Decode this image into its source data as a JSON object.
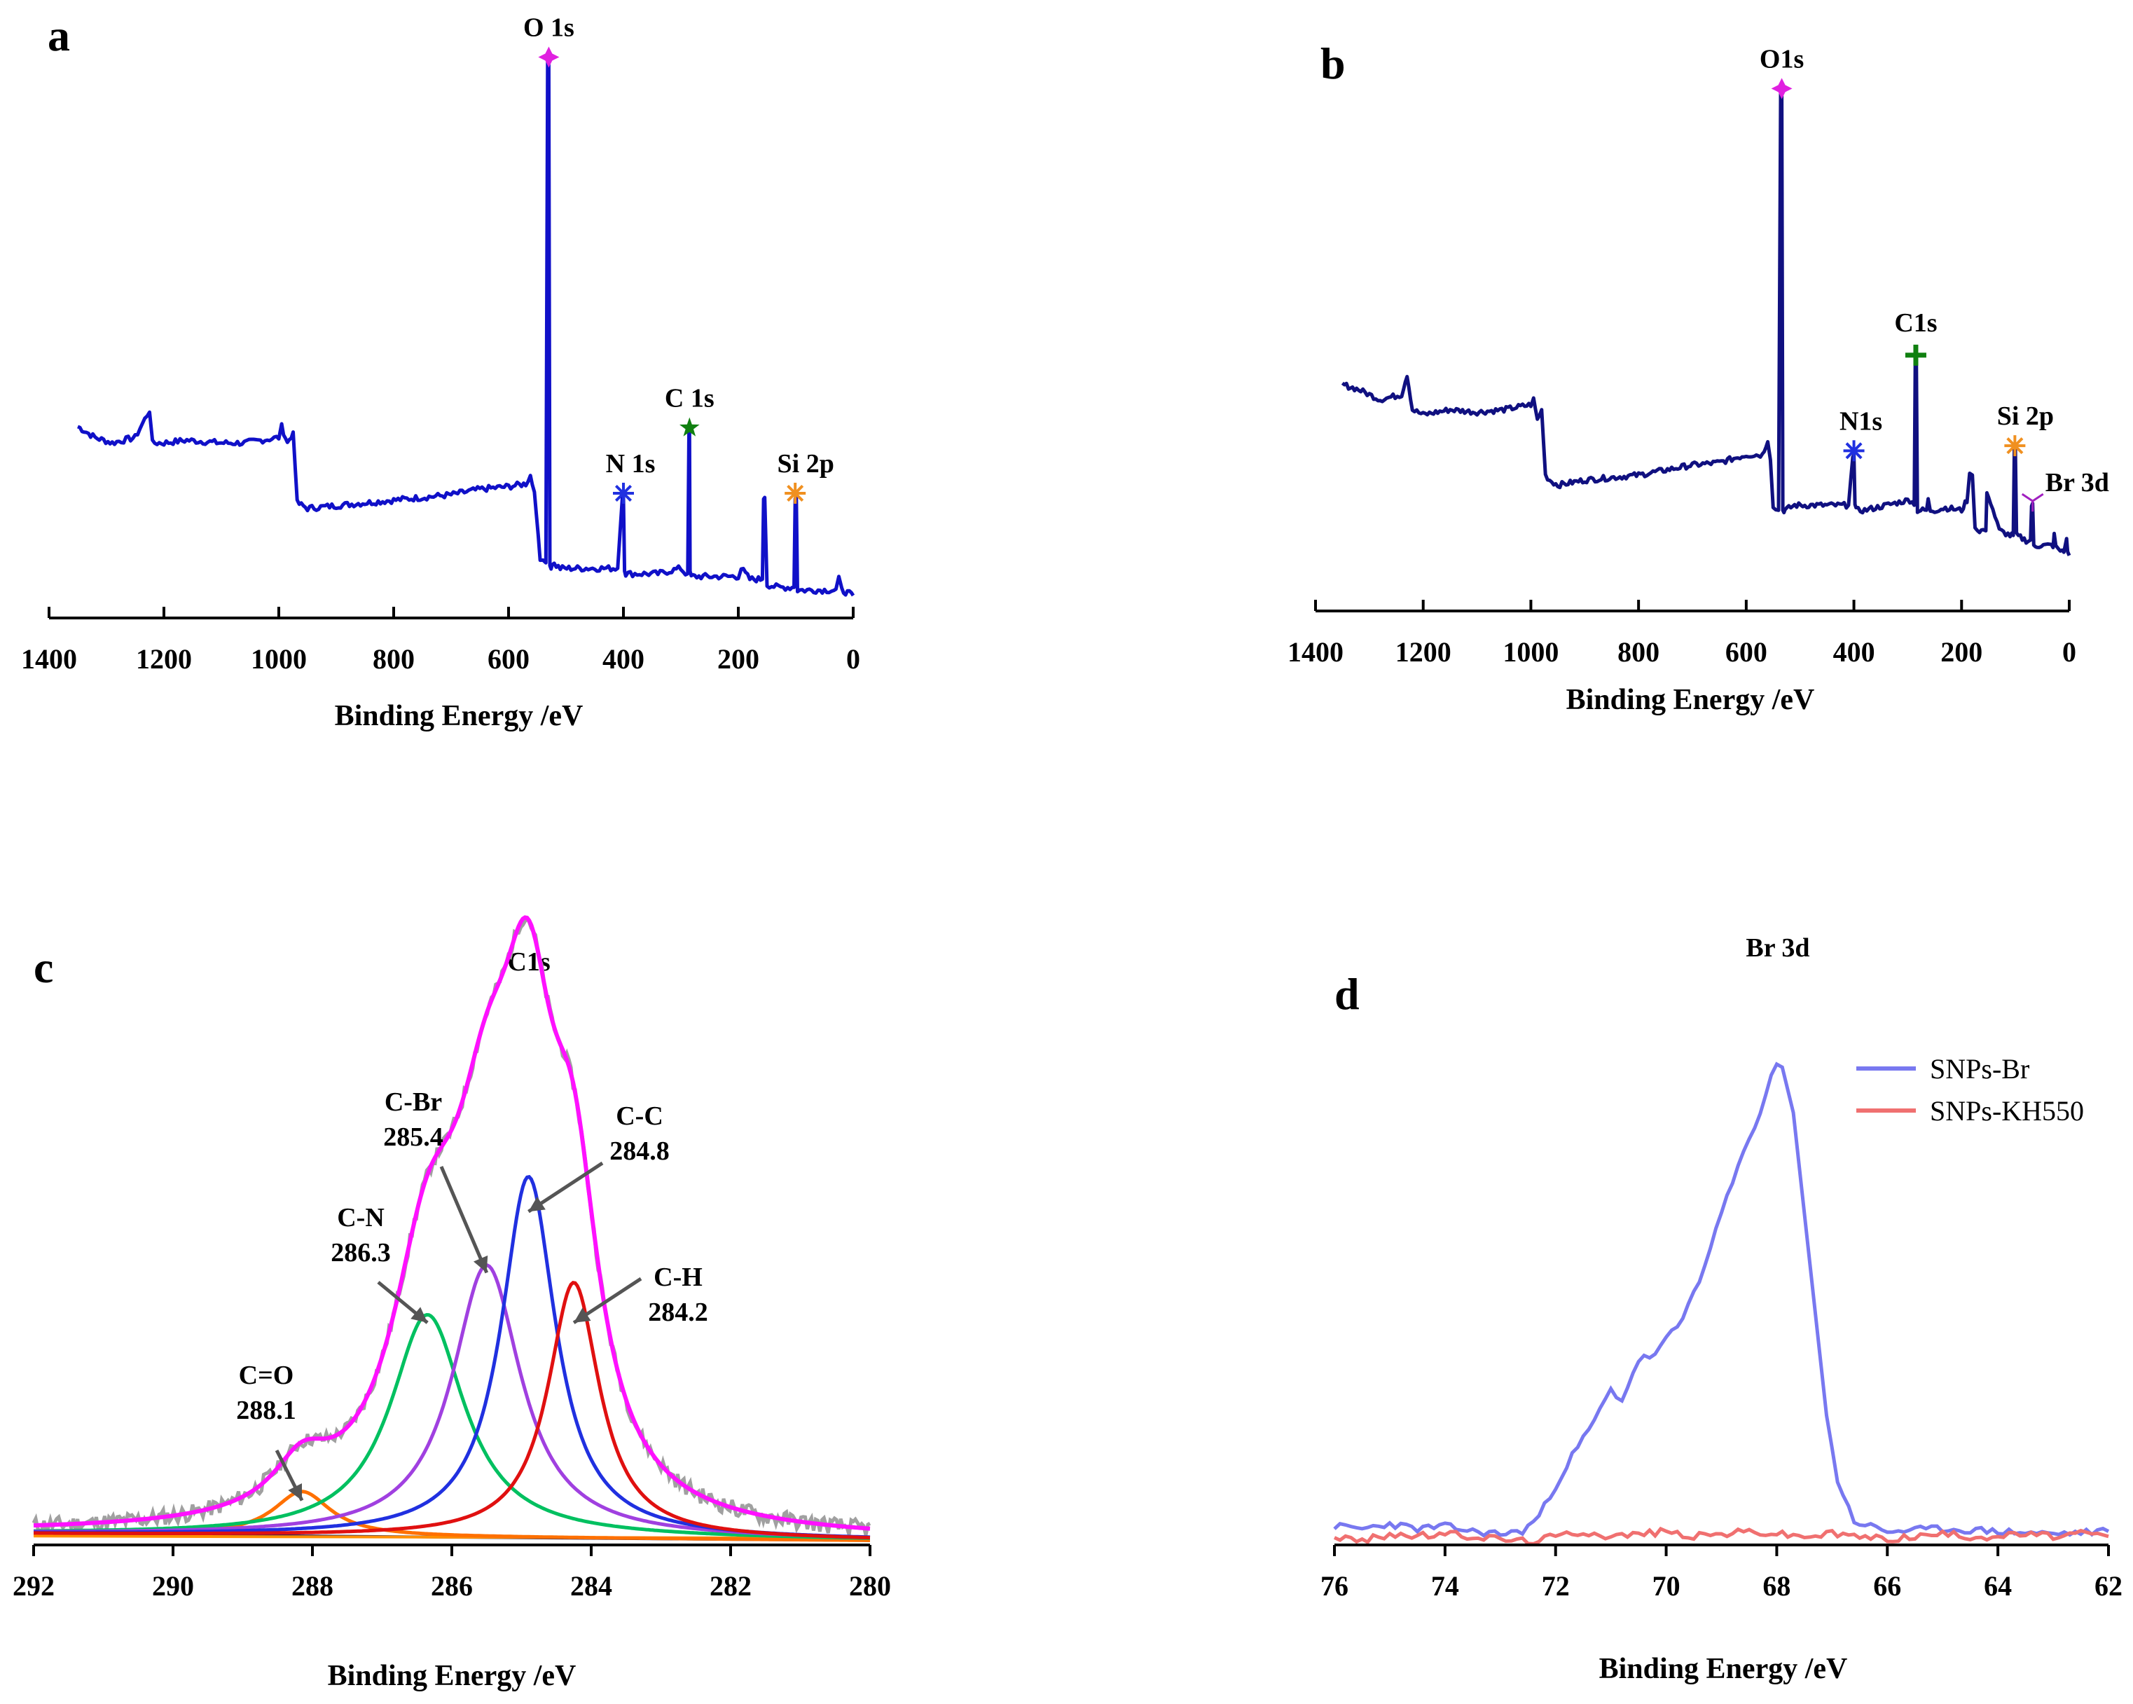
{
  "figure": {
    "panels": [
      {
        "letter": "a",
        "xlabel": "Binding Energy /eV"
      },
      {
        "letter": "b",
        "xlabel": "Binding Energy /eV"
      },
      {
        "letter": "c",
        "xlabel": "Binding Energy /eV",
        "peak_title": "C1s"
      },
      {
        "letter": "d",
        "xlabel": "Binding Energy /eV",
        "peak_title": "Br 3d"
      }
    ]
  },
  "chart_data": [
    {
      "type": "line",
      "panel": "a",
      "xlabel": "Binding Energy /eV",
      "ylabel": "",
      "xlim": [
        1400,
        0
      ],
      "x_reversed": true,
      "xticks": [
        1400,
        1200,
        1000,
        800,
        600,
        400,
        200,
        0
      ],
      "ylim": [
        0,
        100
      ],
      "y_axis_visible": false,
      "colors": {
        "line": "#1010c8"
      },
      "series": [
        {
          "x": [
            1350,
            1320,
            1290,
            1250,
            1225,
            1220,
            1200,
            1160,
            1100,
            1060,
            1000,
            995,
            985,
            975,
            968,
            950,
            900,
            850,
            800,
            750,
            700,
            650,
            600,
            570,
            562,
            555,
            545,
            540,
            535,
            532,
            530,
            528,
            526,
            524,
            510,
            480,
            450,
            410,
            402,
            400,
            398,
            396,
            380,
            340,
            300,
            292,
            288,
            286,
            285,
            284,
            282,
            276,
            250,
            210,
            200,
            195,
            180,
            165,
            158,
            156,
            154,
            150,
            130,
            110,
            103,
            101,
            99,
            97,
            80,
            50,
            30,
            25,
            20,
            10,
            0
          ],
          "y": [
            31,
            29,
            28,
            29,
            34,
            28,
            28,
            28.5,
            28,
            28,
            29,
            31,
            28,
            30,
            17,
            16,
            16.5,
            17,
            17.5,
            18,
            18.5,
            19.5,
            20,
            20.5,
            22,
            19,
            7,
            6,
            6,
            98,
            98,
            6,
            5,
            6,
            5,
            5,
            5,
            5,
            18,
            18,
            5,
            4,
            4,
            4,
            5,
            4,
            4,
            30,
            30,
            4,
            3.5,
            3.5,
            3.5,
            3.5,
            3.5,
            5,
            3,
            3,
            3,
            18,
            18,
            2,
            1.5,
            1.5,
            1.5,
            18,
            18,
            1,
            1,
            1,
            1,
            3,
            1,
            0.5,
            0
          ]
        }
      ],
      "annotations": [
        {
          "text": "O 1s",
          "x": 530,
          "y": 98,
          "marker": "star4",
          "color": "#e020e0"
        },
        {
          "text": "N 1s",
          "x": 400,
          "y": 18,
          "marker": "asterisk",
          "color": "#2030e0"
        },
        {
          "text": "C 1s",
          "x": 285,
          "y": 30,
          "marker": "star5",
          "color": "#108010"
        },
        {
          "text": "Si 2p",
          "x": 101,
          "y": 18,
          "marker": "asterisk",
          "color": "#f09020"
        }
      ]
    },
    {
      "type": "line",
      "panel": "b",
      "xlabel": "Binding Energy /eV",
      "ylabel": "",
      "xlim": [
        1400,
        0
      ],
      "x_reversed": true,
      "xticks": [
        1400,
        1200,
        1000,
        800,
        600,
        400,
        200,
        0
      ],
      "ylim": [
        0,
        100
      ],
      "y_axis_visible": false,
      "colors": {
        "line": "#101080"
      },
      "series": [
        {
          "x": [
            1350,
            1320,
            1280,
            1240,
            1230,
            1220,
            1200,
            1150,
            1100,
            1050,
            1000,
            995,
            988,
            980,
            973,
            965,
            950,
            900,
            850,
            800,
            750,
            700,
            650,
            600,
            570,
            560,
            555,
            550,
            545,
            540,
            536,
            534,
            532,
            530,
            528,
            510,
            480,
            450,
            410,
            402,
            400,
            398,
            396,
            380,
            340,
            300,
            292,
            288,
            286,
            284,
            282,
            276,
            265,
            262,
            258,
            250,
            230,
            200,
            190,
            185,
            180,
            175,
            170,
            160,
            155,
            153,
            150,
            130,
            110,
            104,
            102,
            100,
            98,
            80,
            72,
            70,
            68,
            66,
            60,
            40,
            30,
            28,
            25,
            20,
            10,
            5,
            3,
            0
          ],
          "y": [
            40,
            39,
            37,
            38,
            42,
            35,
            34,
            35,
            34.5,
            35,
            36,
            37,
            33,
            35,
            22,
            21,
            20,
            21,
            21.5,
            22,
            23,
            24,
            24.5,
            26,
            26,
            29,
            25,
            16,
            15,
            15,
            98,
            98,
            15,
            15,
            15,
            16,
            16,
            16,
            16,
            26,
            26,
            16,
            15,
            15,
            16,
            17,
            17,
            16,
            45,
            45,
            15,
            15,
            15,
            17,
            15,
            15,
            15.5,
            15,
            17,
            22,
            22,
            12,
            11,
            11,
            11,
            18,
            18,
            11,
            10,
            10,
            27,
            27,
            10,
            9,
            9,
            16,
            16,
            8,
            8,
            8,
            8,
            10,
            8,
            7,
            7,
            9,
            7,
            6
          ]
        }
      ],
      "annotations": [
        {
          "text": "O1s",
          "x": 534,
          "y": 98,
          "marker": "star4",
          "color": "#e020e0"
        },
        {
          "text": "N1s",
          "x": 400,
          "y": 26,
          "marker": "asterisk",
          "color": "#2030e0"
        },
        {
          "text": "C1s",
          "x": 285,
          "y": 45,
          "marker": "plus",
          "color": "#108010"
        },
        {
          "text": "Si 2p",
          "x": 101,
          "y": 27,
          "marker": "asterisk",
          "color": "#f09020"
        },
        {
          "text": "Br 3d",
          "x": 68,
          "y": 16,
          "marker": "tri",
          "color": "#a020c0"
        }
      ]
    },
    {
      "type": "line",
      "panel": "c",
      "title": "C1s",
      "xlabel": "Binding Energy /eV",
      "ylabel": "",
      "xlim": [
        292,
        280
      ],
      "x_reversed": true,
      "xticks": [
        292,
        290,
        288,
        286,
        284,
        282,
        280
      ],
      "ylim": [
        0,
        100
      ],
      "y_axis_visible": false,
      "components": [
        {
          "label": "C=O",
          "be": 288.1,
          "center": 288.15,
          "height": 8,
          "fwhm": 1.0,
          "color": "#ff7000"
        },
        {
          "label": "C-N",
          "be": 286.3,
          "center": 286.35,
          "height": 40,
          "fwhm": 1.3,
          "color": "#00c060"
        },
        {
          "label": "C-Br",
          "be": 285.4,
          "center": 285.5,
          "height": 49,
          "fwhm": 1.2,
          "color": "#a040e0"
        },
        {
          "label": "C-C",
          "be": 284.8,
          "center": 284.9,
          "height": 65,
          "fwhm": 0.95,
          "color": "#2030e0"
        },
        {
          "label": "C-H",
          "be": 284.2,
          "center": 284.25,
          "height": 46,
          "fwhm": 0.9,
          "color": "#e01010"
        }
      ],
      "background": {
        "x": [
          292,
          280
        ],
        "y": [
          2,
          0.8
        ],
        "color": "#202060"
      },
      "flat_line": {
        "x": [
          292,
          280
        ],
        "y": [
          1.6,
          1.2
        ],
        "color": "#ff9000"
      },
      "envelope_color": "#ff10ff",
      "raw_color": "#a0a0a0",
      "annotations": [
        {
          "text": "C=O",
          "value": "288.1",
          "tip_x": 288.15,
          "tip_y": 8
        },
        {
          "text": "C-N",
          "value": "286.3",
          "tip_x": 286.35,
          "tip_y": 40
        },
        {
          "text": "C-Br",
          "value": "285.4",
          "tip_x": 285.5,
          "tip_y": 49
        },
        {
          "text": "C-C",
          "value": "284.8",
          "tip_x": 284.9,
          "tip_y": 60
        },
        {
          "text": "C-H",
          "value": "284.2",
          "tip_x": 284.25,
          "tip_y": 40
        }
      ]
    },
    {
      "type": "line",
      "panel": "d",
      "title": "Br 3d",
      "xlabel": "Binding Energy /eV",
      "ylabel": "",
      "xlim": [
        76,
        62
      ],
      "x_reversed": true,
      "xticks": [
        76,
        74,
        72,
        70,
        68,
        66,
        64,
        62
      ],
      "ylim": [
        0,
        100
      ],
      "y_axis_visible": false,
      "legend": "top-right",
      "series": [
        {
          "name": "SNPs-Br",
          "color": "#7878f0",
          "x": [
            76,
            75.5,
            75,
            74.5,
            74,
            73.5,
            73,
            72.6,
            72.3,
            72,
            71.7,
            71.4,
            71.2,
            71,
            70.8,
            70.5,
            70.2,
            70,
            69.7,
            69.5,
            69.3,
            69.1,
            68.9,
            68.7,
            68.5,
            68.3,
            68.1,
            68,
            67.9,
            67.7,
            67.5,
            67.3,
            67.1,
            66.9,
            66.6,
            66.3,
            66,
            65,
            64,
            63,
            62
          ],
          "y": [
            3,
            2.5,
            3.5,
            2.5,
            3,
            2,
            1.5,
            2,
            5,
            11,
            17,
            22,
            26,
            30,
            28,
            36,
            37,
            40,
            44,
            50,
            54,
            62,
            68,
            74,
            80,
            85,
            92,
            95,
            94,
            85,
            65,
            45,
            25,
            12,
            4,
            3,
            2,
            2.5,
            2,
            1.5,
            2
          ]
        },
        {
          "name": "SNPs-KH550",
          "color": "#f07070",
          "x": [
            76,
            75.5,
            75,
            74.5,
            74,
            73.5,
            73,
            72.5,
            72,
            71.5,
            71,
            70.5,
            70,
            69.5,
            69,
            68.5,
            68,
            67.5,
            67,
            66.5,
            66,
            65.5,
            65,
            64.5,
            64,
            63.5,
            63,
            62.5,
            62
          ],
          "y": [
            1,
            0,
            1.5,
            1,
            1.5,
            1,
            0.5,
            0,
            1,
            2,
            1,
            1.5,
            2,
            1,
            1.5,
            2,
            1.5,
            1,
            1.5,
            1,
            0.5,
            1,
            1.5,
            1,
            1,
            1.5,
            1,
            1.5,
            1
          ]
        }
      ]
    }
  ]
}
